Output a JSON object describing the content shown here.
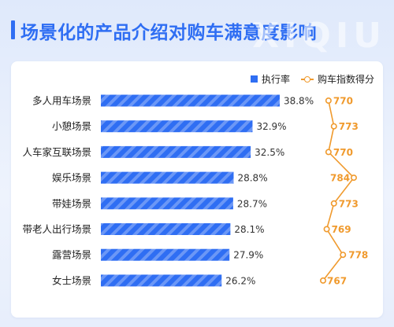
{
  "title": "场景化的产品介绍对购车满意度影响",
  "watermark": "XIQIU",
  "colors": {
    "bar": "#2f6ef3",
    "line": "#f09a2d",
    "title": "#2f6ef3"
  },
  "chart_data": {
    "type": "bar",
    "orientation": "horizontal",
    "categories": [
      "多人用车场景",
      "小憩场景",
      "人车家互联场景",
      "娱乐场景",
      "带娃场景",
      "带老人出行场景",
      "露营场景",
      "女士场景"
    ],
    "series": [
      {
        "name": "执行率",
        "type": "bar",
        "values": [
          38.8,
          32.9,
          32.5,
          28.8,
          28.7,
          28.1,
          27.9,
          26.2
        ],
        "labels": [
          "38.8%",
          "32.9%",
          "32.5%",
          "28.8%",
          "28.7%",
          "28.1%",
          "27.9%",
          "26.2%"
        ]
      },
      {
        "name": "购车指数得分",
        "type": "line",
        "values": [
          770,
          773,
          770,
          784,
          773,
          769,
          778,
          767
        ],
        "labels": [
          "770",
          "773",
          "770",
          "784",
          "773",
          "769",
          "778",
          "767"
        ]
      }
    ],
    "legend": "top-right"
  }
}
